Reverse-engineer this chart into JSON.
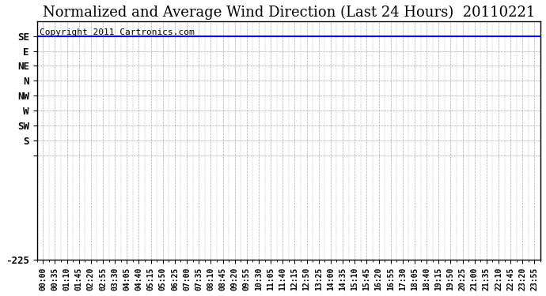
{
  "title": "Normalized and Average Wind Direction (Last 24 Hours)  20110221",
  "copyright_text": "Copyright 2011 Cartronics.com",
  "background_color": "#ffffff",
  "plot_bg_color": "#ffffff",
  "grid_color": "#aaaaaa",
  "line_color": "#0000ff",
  "line_value": 112.5,
  "yticks_numeric": [
    112.5,
    90,
    67.5,
    45,
    22.5,
    0,
    -22.5,
    -45,
    -67.5,
    -225
  ],
  "ytick_labels": [
    "SE",
    "E",
    "NE",
    "N",
    "NW",
    "W",
    "SW",
    "S",
    "",
    "-225"
  ],
  "ymin": -225,
  "ymax": 135,
  "x_labels": [
    "00:00",
    "00:35",
    "01:10",
    "01:45",
    "02:20",
    "02:55",
    "03:30",
    "04:05",
    "04:40",
    "05:15",
    "05:50",
    "06:25",
    "07:00",
    "07:35",
    "08:10",
    "08:45",
    "09:20",
    "09:55",
    "10:30",
    "11:05",
    "11:40",
    "12:15",
    "12:50",
    "13:25",
    "14:00",
    "14:35",
    "15:10",
    "15:45",
    "16:20",
    "16:55",
    "17:30",
    "18:05",
    "18:40",
    "19:15",
    "19:50",
    "20:25",
    "21:00",
    "21:35",
    "22:10",
    "22:45",
    "23:20",
    "23:55"
  ],
  "border_color": "#000000",
  "title_fontsize": 13,
  "copyright_fontsize": 8,
  "tick_fontsize": 7,
  "ytick_fontsize": 9
}
